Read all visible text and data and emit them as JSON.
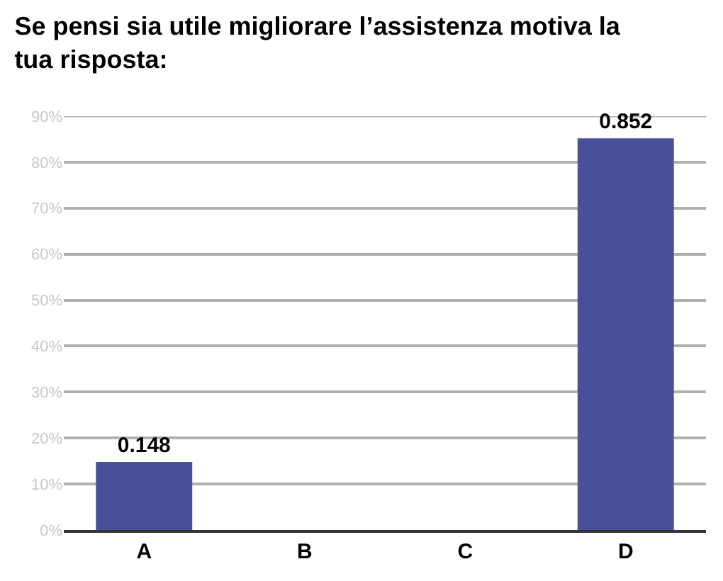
{
  "chart_data": {
    "type": "bar",
    "title": "Se pensi sia utile migliorare l’assistenza motiva la tua risposta:",
    "categories": [
      "A",
      "B",
      "C",
      "D"
    ],
    "values": [
      0.148,
      0,
      0,
      0.852
    ],
    "value_labels": [
      "0.148",
      null,
      null,
      "0.852"
    ],
    "color": "#4a4f9c",
    "ylim": [
      0,
      0.9
    ],
    "yticks": [
      {
        "value": 0,
        "label": "0%"
      },
      {
        "value": 0.1,
        "label": "10%"
      },
      {
        "value": 0.2,
        "label": "20%"
      },
      {
        "value": 0.3,
        "label": "30%"
      },
      {
        "value": 0.4,
        "label": "40%"
      },
      {
        "value": 0.5,
        "label": "50%"
      },
      {
        "value": 0.6,
        "label": "60%"
      },
      {
        "value": 0.7,
        "label": "70%"
      },
      {
        "value": 0.8,
        "label": "80%"
      },
      {
        "value": 0.9,
        "label": "90%"
      }
    ],
    "grid": "y"
  }
}
